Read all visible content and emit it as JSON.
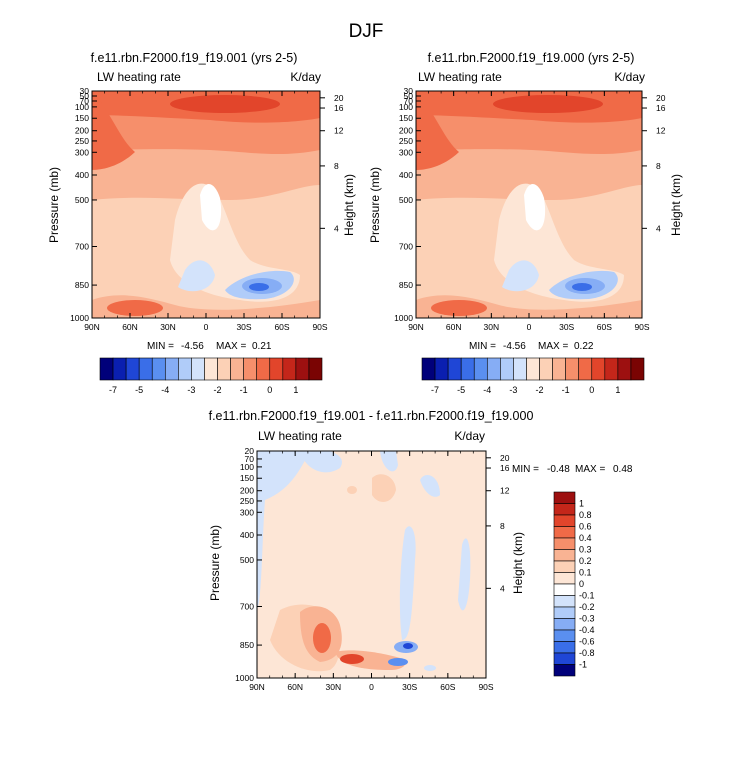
{
  "figure": {
    "title": "DJF",
    "colors": {
      "palette": [
        "#00007a",
        "#0a1fb0",
        "#1f46d6",
        "#3a6ee8",
        "#5a8ff0",
        "#86adf5",
        "#b0ccf9",
        "#d3e3fb",
        "#fde6d6",
        "#fcd1b6",
        "#f9b393",
        "#f68f6b",
        "#f06a47",
        "#e2452b",
        "#c4261a",
        "#9d1010",
        "#7a0403"
      ]
    }
  },
  "chart_data": [
    {
      "type": "heatmap",
      "title": "f.e11.rbn.F2000.f19_f19.001 (yrs 2-5)",
      "left_label": "LW heating rate",
      "right_label": "K/day",
      "xlabel": "",
      "ylabel": "Pressure (mb)",
      "y2label": "Height (km)",
      "x_ticks": [
        "90N",
        "60N",
        "30N",
        "0",
        "30S",
        "60S",
        "90S"
      ],
      "y_ticks": [
        "30",
        "50",
        "70",
        "100",
        "150",
        "200",
        "250",
        "300",
        "400",
        "500",
        "700",
        "850",
        "1000"
      ],
      "y_ticks_values": [
        30,
        50,
        70,
        100,
        150,
        200,
        250,
        300,
        400,
        500,
        700,
        850,
        1000
      ],
      "y2_ticks": [
        "20",
        "16",
        "12",
        "8",
        "4"
      ],
      "y2_ticks_values": [
        20,
        16,
        12,
        8,
        4
      ],
      "ylim": [
        1000,
        30
      ],
      "min_label": "MIN =",
      "min_value": "-4.56",
      "max_label": "MAX =",
      "max_value": "0.21",
      "colorbar": {
        "orientation": "horizontal",
        "labels": [
          "-7",
          "-5",
          "-4",
          "-3",
          "-2",
          "-1",
          "0",
          "1"
        ],
        "levels": [
          -7,
          -6.5,
          -6,
          -5.5,
          -5,
          -4.5,
          -4,
          -3.5,
          -3,
          -2.5,
          -2,
          -1.5,
          -1,
          -0.5,
          0,
          0.5,
          1
        ]
      },
      "fields": "longwave heating rate, latitude × pressure; about -2 to -3 K/day through most of the troposphere, near -1 K/day in the upper troposphere (100–200 mb) and near the surface at 1000 mb; a local minimum near -4.56 K/day around 30S at 850 mb"
    },
    {
      "type": "heatmap",
      "title": "f.e11.rbn.F2000.f19_f19.000 (yrs 2-5)",
      "left_label": "LW heating rate",
      "right_label": "K/day",
      "xlabel": "",
      "ylabel": "Pressure (mb)",
      "y2label": "Height (km)",
      "x_ticks": [
        "90N",
        "60N",
        "30N",
        "0",
        "30S",
        "60S",
        "90S"
      ],
      "y_ticks": [
        "30",
        "50",
        "70",
        "100",
        "150",
        "200",
        "250",
        "300",
        "400",
        "500",
        "700",
        "850",
        "1000"
      ],
      "y2_ticks": [
        "20",
        "16",
        "12",
        "8",
        "4"
      ],
      "ylim": [
        1000,
        30
      ],
      "min_label": "MIN =",
      "min_value": "-4.56",
      "max_label": "MAX =",
      "max_value": "0.22",
      "colorbar": {
        "orientation": "horizontal",
        "labels": [
          "-7",
          "-5",
          "-4",
          "-3",
          "-2",
          "-1",
          "0",
          "1"
        ]
      }
    },
    {
      "type": "heatmap",
      "title": "f.e11.rbn.F2000.f19_f19.001 - f.e11.rbn.F2000.f19_f19.000",
      "left_label": "LW heating rate",
      "right_label": "K/day",
      "xlabel": "",
      "ylabel": "Pressure (mb)",
      "y2label": "Height (km)",
      "x_ticks": [
        "90N",
        "60N",
        "30N",
        "0",
        "30S",
        "60S",
        "90S"
      ],
      "y_ticks": [
        "20",
        "70",
        "100",
        "150",
        "200",
        "250",
        "300",
        "400",
        "500",
        "700",
        "850",
        "1000"
      ],
      "y_ticks_values": [
        20,
        70,
        100,
        150,
        200,
        250,
        300,
        400,
        500,
        700,
        850,
        1000
      ],
      "y2_ticks": [
        "20",
        "16",
        "12",
        "8",
        "4"
      ],
      "ylim": [
        1000,
        20
      ],
      "min_label": "MIN =",
      "min_value": "-0.48",
      "max_label": "MAX =",
      "max_value": "0.48",
      "colorbar": {
        "orientation": "vertical",
        "labels": [
          "1",
          "0.8",
          "0.6",
          "0.4",
          "0.3",
          "0.2",
          "0.1",
          "0",
          "-0.1",
          "-0.2",
          "-0.3",
          "-0.4",
          "-0.6",
          "-0.8",
          "-1"
        ],
        "colors": [
          "#9d1010",
          "#c4261a",
          "#e2452b",
          "#f06a47",
          "#f68f6b",
          "#f9b393",
          "#fcd1b6",
          "#fde6d6",
          "#ffffff",
          "#d3e3fb",
          "#b0ccf9",
          "#86adf5",
          "#5a8ff0",
          "#3a6ee8",
          "#1f46d6",
          "#00007a"
        ]
      },
      "fields": "difference field mostly near 0 (−0.1 to 0.1 K/day); small positive patches near 30N–0 at 850–1000 mb (up to about 0.48) and small negative patches near 30S at 850 mb and around 90N at the top of the domain"
    }
  ]
}
